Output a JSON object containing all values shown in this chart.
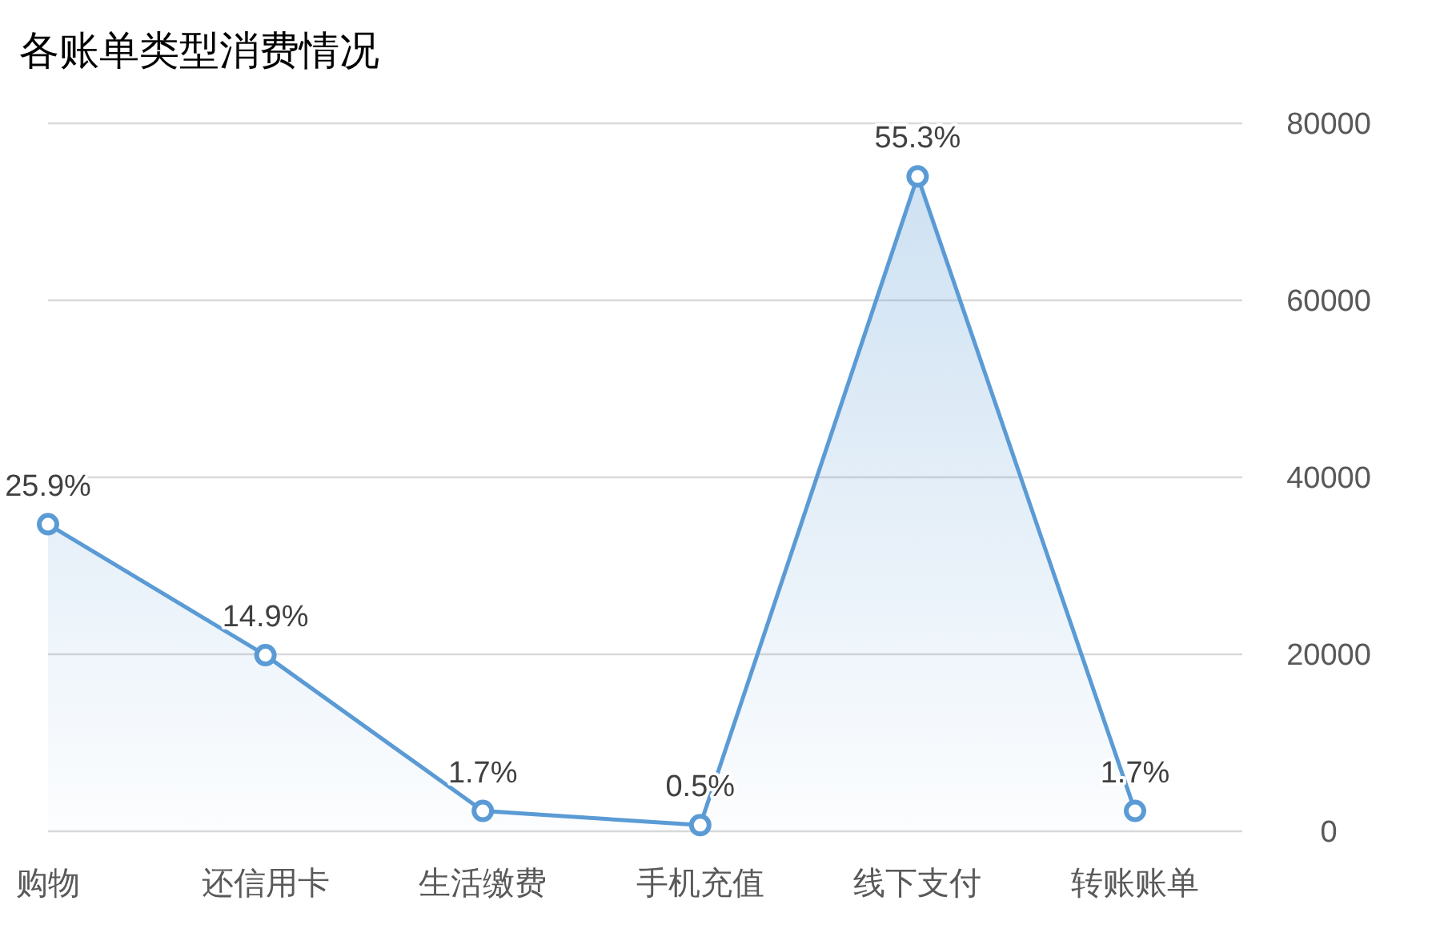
{
  "chart_data": {
    "type": "area",
    "title": "各账单类型消费情况",
    "categories": [
      "购物",
      "还信用卡",
      "生活缴费",
      "手机充值",
      "线下支付",
      "转账账单"
    ],
    "series": [
      {
        "color": "#5b9bd5",
        "values": [
          34700,
          19900,
          2300,
          700,
          74000,
          2300
        ]
      }
    ],
    "value_labels": [
      "25.9%",
      "14.9%",
      "1.7%",
      "0.5%",
      "55.3%",
      "1.7%"
    ],
    "ylim": [
      0,
      80000
    ],
    "yticks": [
      0,
      20000,
      40000,
      60000,
      80000
    ],
    "grid": "y",
    "marker": "circle"
  }
}
